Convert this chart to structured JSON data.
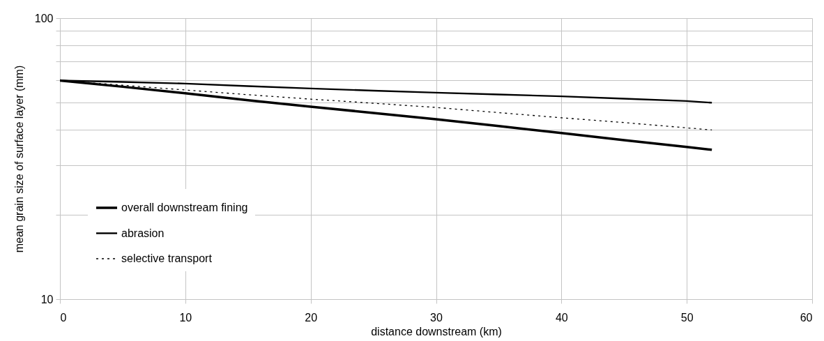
{
  "chart_data": {
    "type": "line",
    "xlabel": "distance downstream (km)",
    "ylabel": "mean grain size of surface layer (mm)",
    "xlim": [
      0,
      60
    ],
    "xticks": [
      0,
      10,
      20,
      30,
      40,
      50,
      60
    ],
    "ylim": [
      10,
      100
    ],
    "yticks": [
      10,
      {
        "value": 20,
        "label": null
      },
      {
        "value": 30,
        "label": null
      },
      {
        "value": 40,
        "label": null
      },
      {
        "value": 50,
        "label": null
      },
      {
        "value": 60,
        "label": null
      },
      {
        "value": 70,
        "label": null
      },
      {
        "value": 80,
        "label": null
      },
      {
        "value": 90,
        "label": null
      },
      100
    ],
    "log": true,
    "grid": true,
    "legend": "bottom left",
    "marker": "none",
    "series": [
      {
        "name": "overall downstream fining",
        "color": "#000000",
        "line_style": "solid",
        "x": [
          0,
          5,
          10,
          15,
          20,
          25,
          30,
          35,
          40,
          45,
          50,
          52
        ],
        "values": [
          60,
          57,
          54,
          51,
          48.4,
          46,
          43.7,
          41.3,
          39,
          36.8,
          34.8,
          34
        ]
      },
      {
        "name": "abrasion",
        "color": "#000000",
        "line_style": "solid",
        "x": [
          0,
          5,
          10,
          15,
          20,
          25,
          30,
          35,
          40,
          45,
          50,
          52
        ],
        "values": [
          60,
          59.3,
          58.5,
          57.3,
          56.2,
          55.2,
          54.3,
          53.5,
          52.7,
          51.7,
          50.7,
          50
        ]
      },
      {
        "name": "selective transport",
        "color": "#000000",
        "line_style": "dotted",
        "x": [
          0,
          5,
          10,
          15,
          20,
          25,
          30,
          35,
          40,
          45,
          50,
          52
        ],
        "values": [
          60,
          57.7,
          55.5,
          53.4,
          51.5,
          49.8,
          48.1,
          46.1,
          44.2,
          42.5,
          40.7,
          40
        ]
      }
    ]
  }
}
